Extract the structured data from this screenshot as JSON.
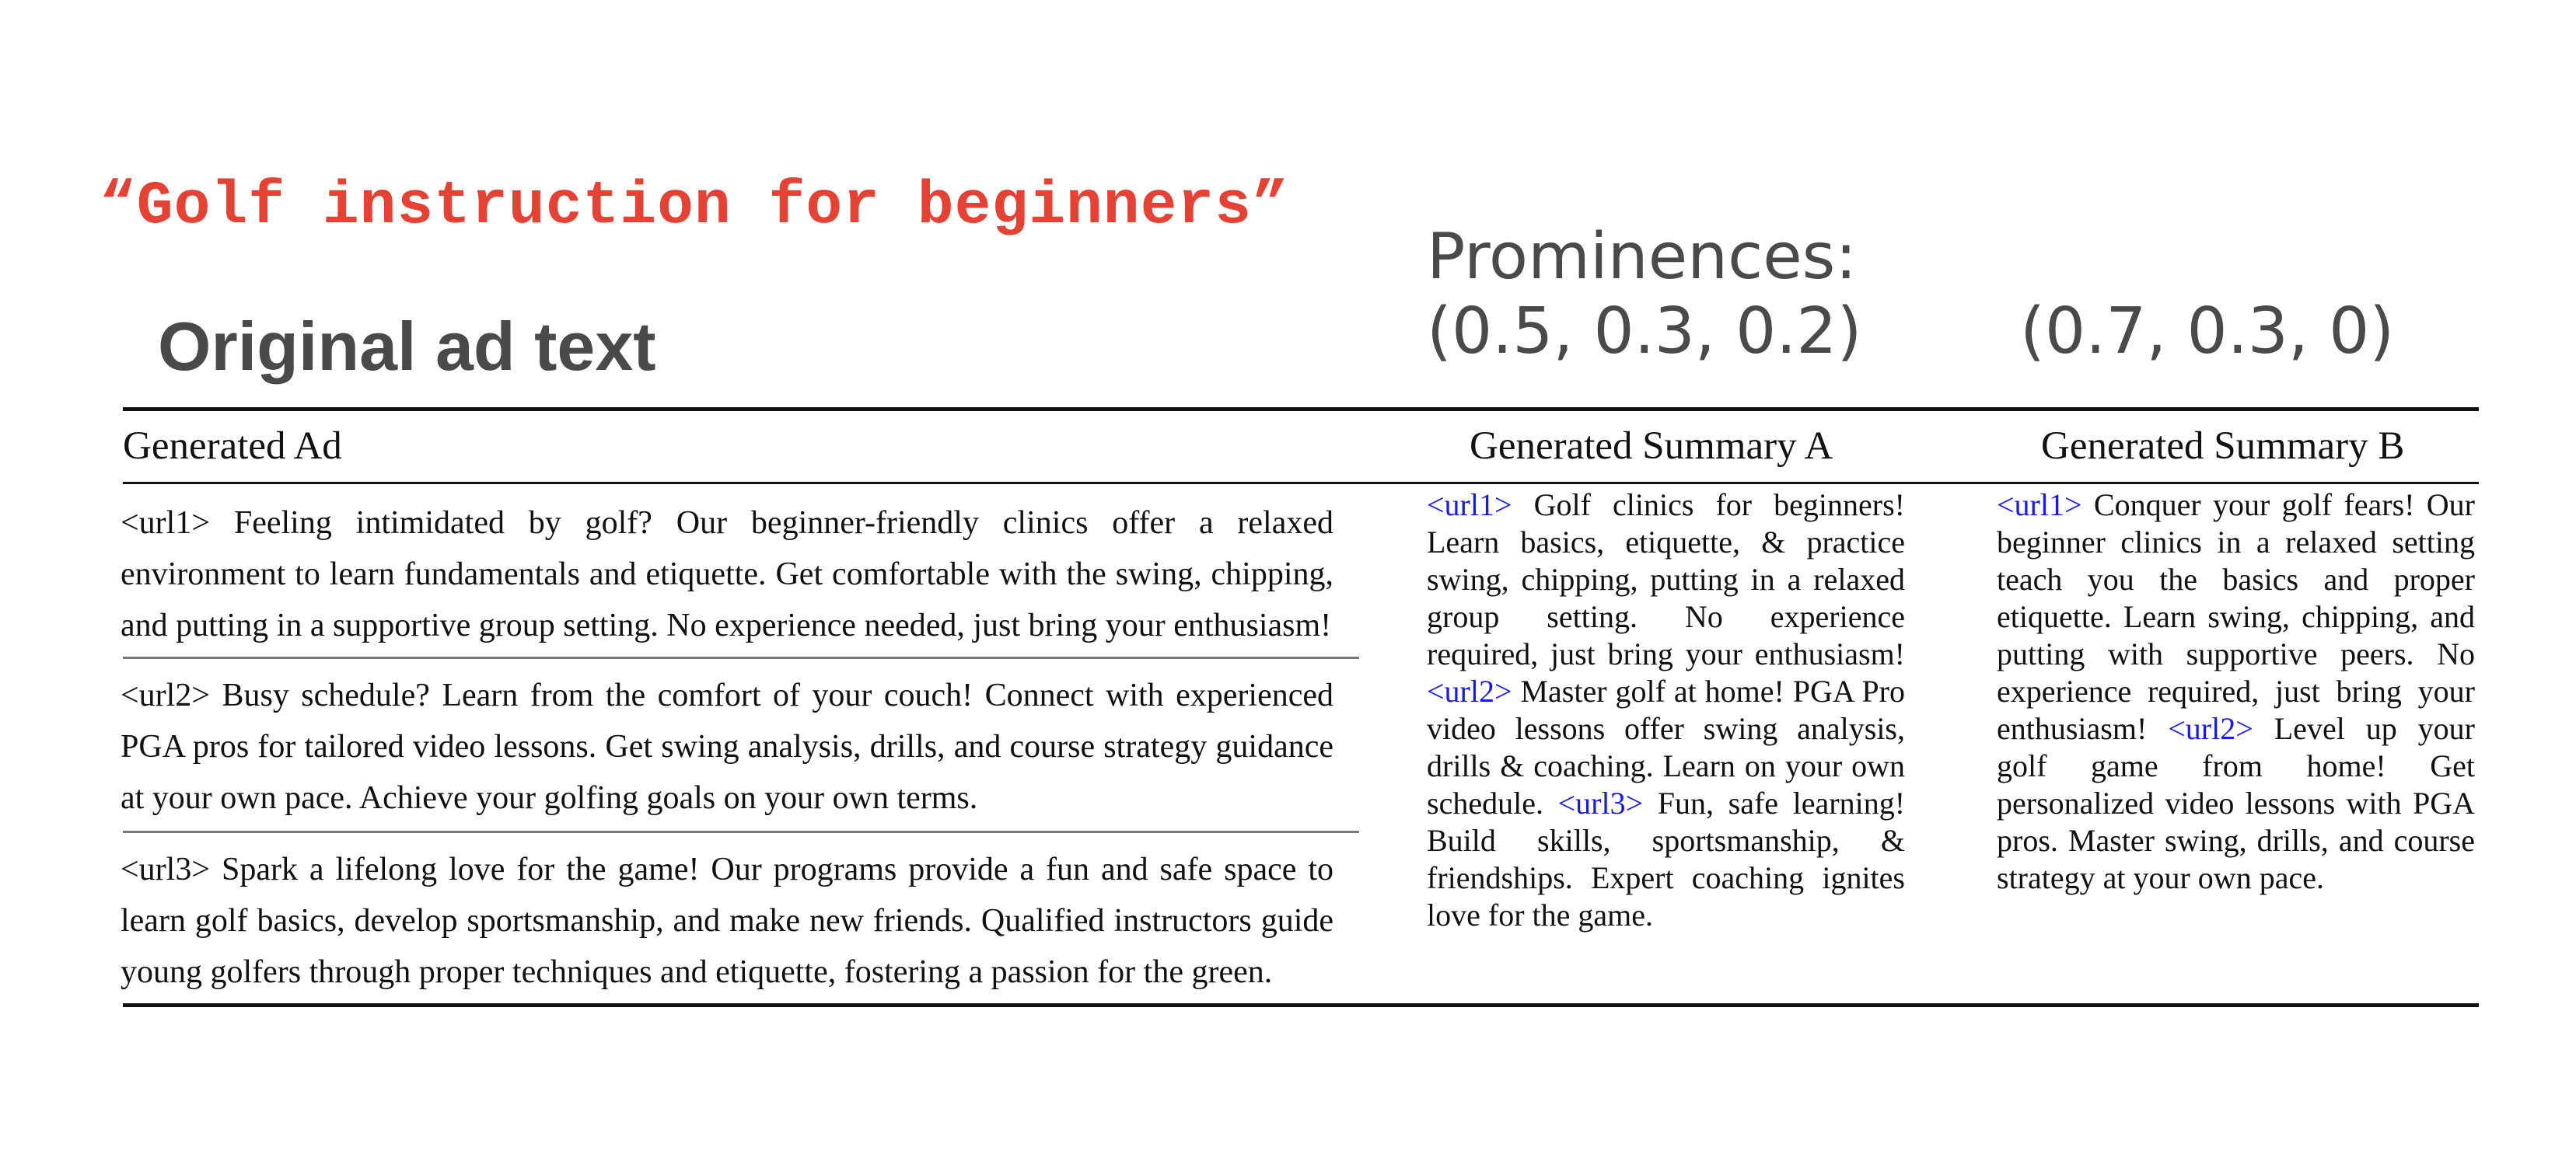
{
  "query": "“Golf instruction for beginners”",
  "original_label": "Original ad text",
  "prominences": {
    "label": "Prominences:",
    "a": "(0.5, 0.3, 0.2)",
    "b": "(0.7, 0.3, 0)"
  },
  "table": {
    "headers": {
      "ad": "Generated Ad",
      "summary_a": "Generated Summary A",
      "summary_b": "Generated Summary B"
    },
    "ads": [
      {
        "text": "<url1> Feeling intimidated by golf? Our beginner-friendly clinics offer a relaxed environment to learn fundamentals and etiquette. Get comfortable with the swing, chipping, and putting in a supportive group setting. No experience needed, just bring your enthusiasm!"
      },
      {
        "text": "<url2> Busy schedule? Learn from the comfort of your couch! Connect with experienced PGA pros for tailored video lessons. Get swing analysis, drills, and course strategy guidance at your own pace. Achieve your golfing goals on your own terms."
      },
      {
        "text": "<url3> Spark a lifelong love for the game! Our programs provide a fun and safe space to learn golf basics, develop sportsmanship, and make new friends. Qualified instructors guide young golfers through proper techniques and etiquette, fostering a passion for the green."
      }
    ],
    "summary_a": [
      {
        "tag": "<url1>",
        "text": "Golf clinics for beginners! Learn basics, etiquette, & practice swing, chipping, putting in a relaxed group setting. No experience required, just bring your enthusiasm!"
      },
      {
        "tag": "<url2>",
        "text": "Master golf at home! PGA Pro video lessons offer swing analysis, drills & coaching. Learn on your own schedule."
      },
      {
        "tag": "<url3>",
        "text": "Fun, safe learning! Build skills, sportsmanship, & friendships. Expert coaching ignites love for the game."
      }
    ],
    "summary_b": [
      {
        "tag": "<url1>",
        "text": "Conquer your golf fears! Our beginner clinics in a relaxed setting teach you the basics and proper etiquette. Learn swing, chipping, and putting with supportive peers. No experience required, just bring your enthusiasm!"
      },
      {
        "tag": "<url2>",
        "text": "Level up your golf game from home! Get personalized video lessons with PGA pros. Master swing, drills, and course strategy at your own pace."
      }
    ]
  },
  "colors": {
    "query": "#e34234",
    "url_tag": "#1a1ae6",
    "label_gray": "#4a4a4a"
  }
}
